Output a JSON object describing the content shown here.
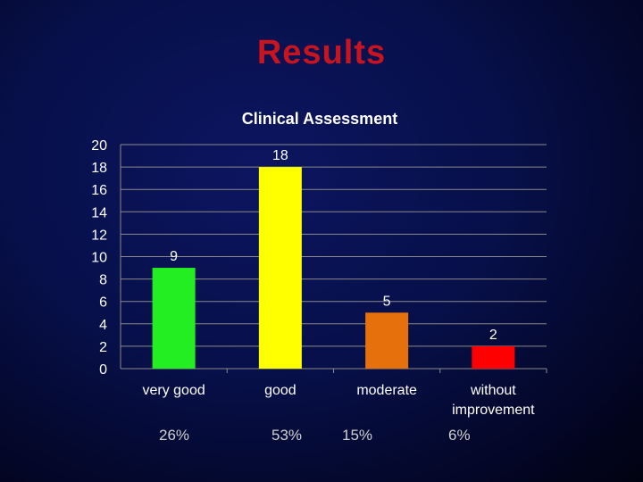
{
  "slide": {
    "title": "Results"
  },
  "chart_data": {
    "type": "bar",
    "title": "Clinical Assessment",
    "categories": [
      "very good",
      "good",
      "moderate",
      "without improvement"
    ],
    "category_lines": [
      [
        "very good"
      ],
      [
        "good"
      ],
      [
        "moderate"
      ],
      [
        "without",
        "improvement"
      ]
    ],
    "values": [
      9,
      18,
      5,
      2
    ],
    "data_labels": [
      "9",
      "18",
      "5",
      "2"
    ],
    "bar_colors": [
      "#22ee22",
      "#ffff00",
      "#e6700c",
      "#ff0000"
    ],
    "ylim": [
      0,
      20
    ],
    "yticks": [
      0,
      2,
      4,
      6,
      8,
      10,
      12,
      14,
      16,
      18,
      20
    ],
    "grid": true,
    "legend": "none",
    "xlabel": "",
    "ylabel": ""
  },
  "percentages": [
    "26%",
    "53%",
    "15%",
    "6%"
  ],
  "colors": {
    "title": "#c8141e",
    "axis_text": "#ffffff",
    "gridline": "#8a8a8a"
  }
}
